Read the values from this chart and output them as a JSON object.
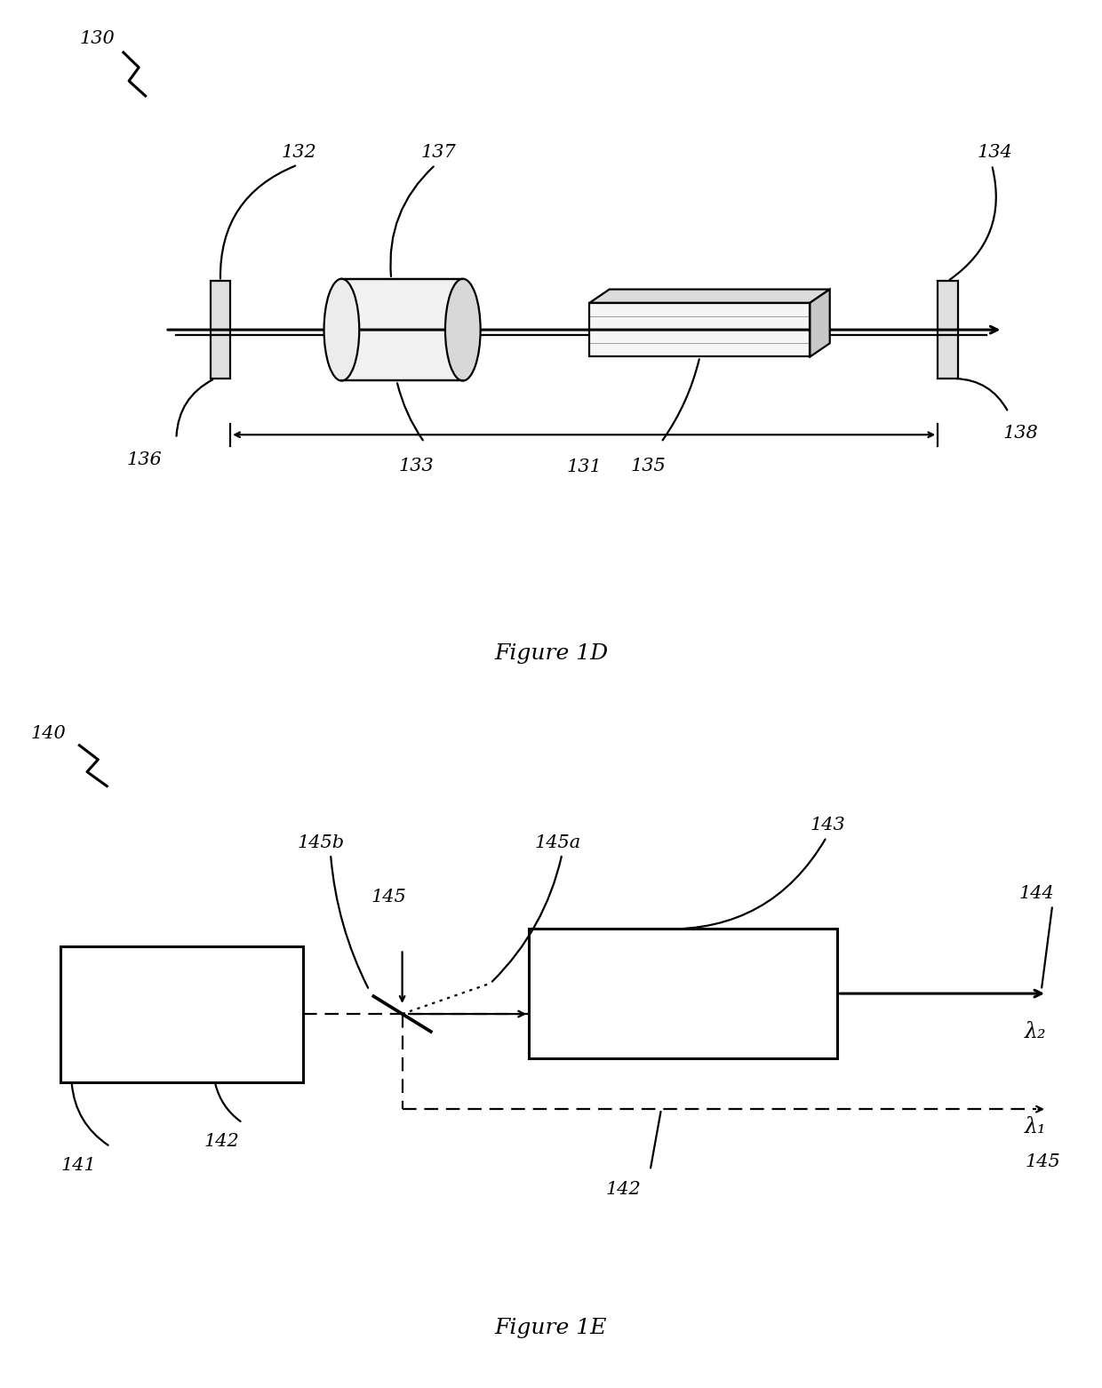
{
  "fig_width": 12.4,
  "fig_height": 15.62,
  "bg_color": "#ffffff",
  "fig1d": {
    "title": "Figure 1D",
    "label_130": "130",
    "label_131": "131",
    "label_132": "132",
    "label_133": "133",
    "label_134": "134",
    "label_135": "135",
    "label_136": "136",
    "label_137": "137",
    "label_138": "138"
  },
  "fig1e": {
    "title": "Figure 1E",
    "label_140": "140",
    "label_141": "141",
    "label_142": "142",
    "label_143": "143",
    "label_144": "144",
    "label_145": "145",
    "label_145a": "145a",
    "label_145b": "145b",
    "lambda1": "λ₁",
    "lambda2": "λ₂"
  }
}
